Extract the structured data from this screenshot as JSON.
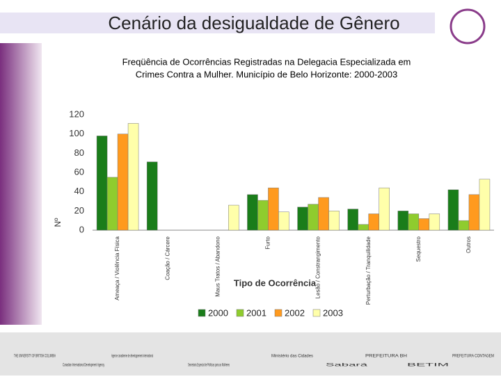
{
  "title": "Cenário da desigualdade de Gênero",
  "chart_data": {
    "type": "bar",
    "title": "Freqüência de Ocorrências Registradas na Delegacia Especializada em Crimes Contra a Mulher. Município de Belo Horizonte: 2000-2003",
    "x_label": "Tipo de Ocorrência",
    "y_label": "Nº",
    "categories": [
      "Ameaça / Violência Física",
      "Coação / Cárcere",
      "Maus Tratos / Abandono",
      "Furto",
      "Lesão / Constrangimento",
      "Perturbação / Tranquilidade",
      "Sequestro",
      "Outros"
    ],
    "series": [
      {
        "name": "2000",
        "color": "#1a7d1a",
        "values": [
          98,
          71,
          0,
          37,
          24,
          22,
          20,
          42
        ]
      },
      {
        "name": "2001",
        "color": "#8fcc2e",
        "values": [
          55,
          0,
          0,
          31,
          27,
          6,
          17,
          10
        ]
      },
      {
        "name": "2002",
        "color": "#ff9a1e",
        "values": [
          100,
          0,
          0,
          44,
          34,
          17,
          12,
          37
        ]
      },
      {
        "name": "2003",
        "color": "#ffffaa",
        "values": [
          111,
          0,
          26,
          19,
          20,
          44,
          17,
          53
        ]
      }
    ],
    "ylim": [
      0,
      120
    ],
    "yticks": [
      0,
      20,
      40,
      60,
      80,
      100,
      120
    ],
    "legend": "bottom"
  },
  "logos": [
    "THE UNIVERSITY OF BRITISH COLUMBIA",
    "Canadian International Development Agency",
    "Agence canadienne de développement international",
    "Secretaria Especial de Políticas para as Mulheres",
    "Ministério das Cidades",
    "Sabará",
    "PREFEITURA BH",
    "BETIM",
    "PREFEITURA CONTAGEM"
  ]
}
